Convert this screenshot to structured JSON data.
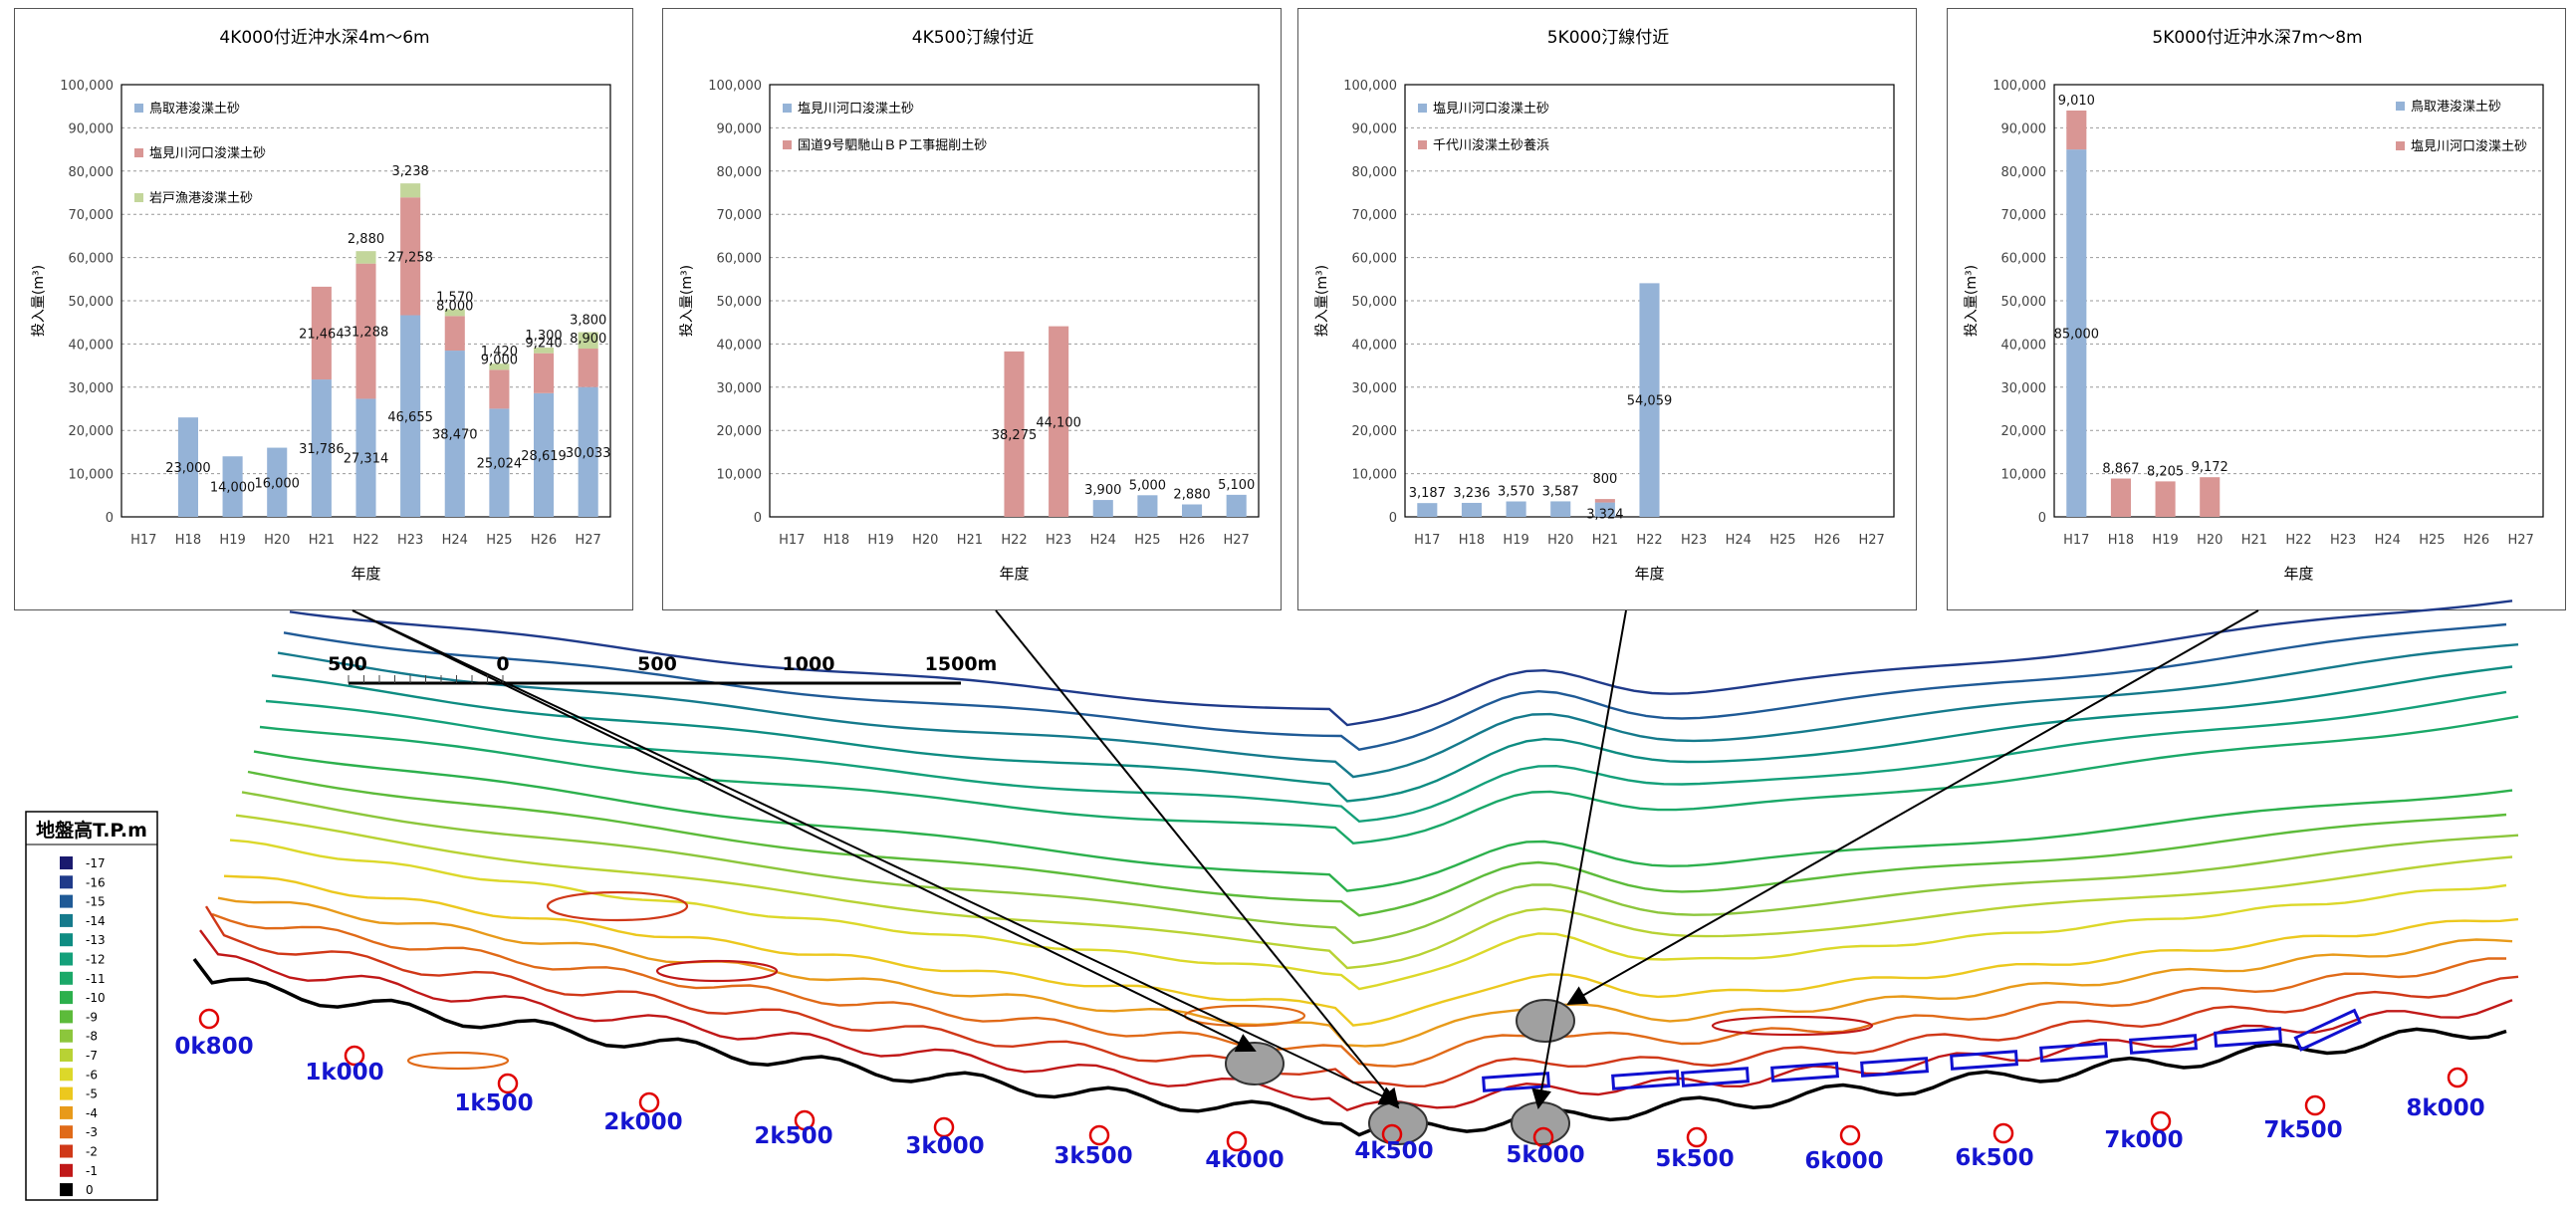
{
  "charts": [
    {
      "title": "4K000付近沖水深4m〜6m",
      "ylabel": "投入量(m³)",
      "xlabel": "年度",
      "categories": [
        "H17",
        "H18",
        "H19",
        "H20",
        "H21",
        "H22",
        "H23",
        "H24",
        "H25",
        "H26",
        "H27"
      ],
      "ylim": [
        0,
        100000
      ],
      "yticks": [
        "0",
        "10,000",
        "20,000",
        "30,000",
        "40,000",
        "50,000",
        "60,000",
        "70,000",
        "80,000",
        "90,000",
        "100,000"
      ],
      "legend_layout": "left",
      "series": [
        {
          "name": "鳥取港浚渫土砂",
          "color": "#95B3D7",
          "values": [
            0,
            23000,
            14000,
            16000,
            31786,
            27314,
            46655,
            38470,
            25024,
            28619,
            30033
          ],
          "labels": [
            "",
            "23,000",
            "14,000",
            "16,000",
            "31,786",
            "27,314",
            "46,655",
            "38,470",
            "25,024",
            "28,619",
            "30,033"
          ]
        },
        {
          "name": "塩見川河口浚渫土砂",
          "color": "#D99694",
          "values": [
            0,
            0,
            0,
            0,
            21464,
            31288,
            27258,
            8000,
            9000,
            9240,
            8900
          ],
          "labels": [
            "",
            "",
            "",
            "",
            "21,464",
            "31,288",
            "27,258",
            "8,000",
            "9,000",
            "9,240",
            "8,900"
          ]
        },
        {
          "name": "岩戸漁港浚渫土砂",
          "color": "#C3D69B",
          "values": [
            0,
            0,
            0,
            0,
            0,
            2880,
            3238,
            1570,
            1420,
            1300,
            3800
          ],
          "labels": [
            "",
            "",
            "",
            "",
            "",
            "2,880",
            "3,238",
            "1,570",
            "1,420",
            "1,300",
            "3,800"
          ]
        }
      ]
    },
    {
      "title": "4K500汀線付近",
      "ylabel": "投入量(m³)",
      "xlabel": "年度",
      "categories": [
        "H17",
        "H18",
        "H19",
        "H20",
        "H21",
        "H22",
        "H23",
        "H24",
        "H25",
        "H26",
        "H27"
      ],
      "ylim": [
        0,
        100000
      ],
      "yticks": [
        "0",
        "10,000",
        "20,000",
        "30,000",
        "40,000",
        "50,000",
        "60,000",
        "70,000",
        "80,000",
        "90,000",
        "100,000"
      ],
      "legend_layout": "left",
      "series": [
        {
          "name": "塩見川河口浚渫土砂",
          "color": "#95B3D7",
          "values": [
            0,
            0,
            0,
            0,
            0,
            0,
            0,
            3900,
            5000,
            2880,
            5100
          ],
          "labels": [
            "",
            "",
            "",
            "",
            "",
            "",
            "",
            "3,900",
            "5,000",
            "2,880",
            "5,100"
          ]
        },
        {
          "name": "国道9号駟馳山ＢＰ工事掘削土砂",
          "color": "#D99694",
          "values": [
            0,
            0,
            0,
            0,
            0,
            38275,
            44100,
            0,
            0,
            0,
            0
          ],
          "labels": [
            "",
            "",
            "",
            "",
            "",
            "38,275",
            "44,100",
            "",
            "",
            "",
            ""
          ]
        }
      ]
    },
    {
      "title": "5K000汀線付近",
      "ylabel": "投入量(m³)",
      "xlabel": "年度",
      "categories": [
        "H17",
        "H18",
        "H19",
        "H20",
        "H21",
        "H22",
        "H23",
        "H24",
        "H25",
        "H26",
        "H27"
      ],
      "ylim": [
        0,
        100000
      ],
      "yticks": [
        "0",
        "10,000",
        "20,000",
        "30,000",
        "40,000",
        "50,000",
        "60,000",
        "70,000",
        "80,000",
        "90,000",
        "100,000"
      ],
      "legend_layout": "left",
      "series": [
        {
          "name": "塩見川河口浚渫土砂",
          "color": "#95B3D7",
          "values": [
            3187,
            3236,
            3570,
            3587,
            3324,
            54059,
            0,
            0,
            0,
            0,
            0
          ],
          "labels": [
            "3,187",
            "3,236",
            "3,570",
            "3,587",
            "3,324",
            "54,059",
            "",
            "",
            "",
            "",
            ""
          ]
        },
        {
          "name": "千代川浚渫土砂養浜",
          "color": "#D99694",
          "values": [
            0,
            0,
            0,
            0,
            800,
            0,
            0,
            0,
            0,
            0,
            0
          ],
          "labels": [
            "",
            "",
            "",
            "",
            "800",
            "",
            "",
            "",
            "",
            "",
            ""
          ]
        }
      ]
    },
    {
      "title": "5K000付近沖水深7m〜8m",
      "ylabel": "投入量(m³)",
      "xlabel": "年度",
      "categories": [
        "H17",
        "H18",
        "H19",
        "H20",
        "H21",
        "H22",
        "H23",
        "H24",
        "H25",
        "H26",
        "H27"
      ],
      "ylim": [
        0,
        100000
      ],
      "yticks": [
        "0",
        "10,000",
        "20,000",
        "30,000",
        "40,000",
        "50,000",
        "60,000",
        "70,000",
        "80,000",
        "90,000",
        "100,000"
      ],
      "legend_layout": "right",
      "series": [
        {
          "name": "鳥取港浚渫土砂",
          "color": "#95B3D7",
          "values": [
            85000,
            0,
            0,
            0,
            0,
            0,
            0,
            0,
            0,
            0,
            0
          ],
          "labels": [
            "85,000",
            "",
            "",
            "",
            "",
            "",
            "",
            "",
            "",
            "",
            ""
          ]
        },
        {
          "name": "塩見川河口浚渫土砂",
          "color": "#D99694",
          "values": [
            9010,
            8867,
            8205,
            9172,
            0,
            0,
            0,
            0,
            0,
            0,
            0
          ],
          "labels": [
            "9,010",
            "8,867",
            "8,205",
            "9,172",
            "",
            "",
            "",
            "",
            "",
            "",
            ""
          ]
        }
      ]
    }
  ],
  "map": {
    "scale_labels": [
      "500",
      "0",
      "500",
      "1000",
      "1500m"
    ],
    "legend_title": "地盤高T.P.m",
    "legend_levels": [
      {
        "label": "-17",
        "color": "#1a1a6e"
      },
      {
        "label": "-16",
        "color": "#1f3a8a"
      },
      {
        "label": "-15",
        "color": "#1f5a96"
      },
      {
        "label": "-14",
        "color": "#157a8c"
      },
      {
        "label": "-13",
        "color": "#0e8c82"
      },
      {
        "label": "-12",
        "color": "#14a07a"
      },
      {
        "label": "-11",
        "color": "#1aa868"
      },
      {
        "label": "-10",
        "color": "#2cb04c"
      },
      {
        "label": "-9",
        "color": "#5cbb3a"
      },
      {
        "label": "-8",
        "color": "#8cc63c"
      },
      {
        "label": "-7",
        "color": "#b8d234"
      },
      {
        "label": "-6",
        "color": "#dcd82a"
      },
      {
        "label": "-5",
        "color": "#ecc81e"
      },
      {
        "label": "-4",
        "color": "#e89a1a"
      },
      {
        "label": "-3",
        "color": "#e06a18"
      },
      {
        "label": "-2",
        "color": "#d03818"
      },
      {
        "label": "-1",
        "color": "#c01818"
      },
      {
        "label": "0",
        "color": "#000000"
      }
    ],
    "stations": [
      "0k800",
      "1k000",
      "1k500",
      "2k000",
      "2k500",
      "3k000",
      "3k500",
      "4k000",
      "4k500",
      "5k000",
      "5k500",
      "6k000",
      "6k500",
      "7k000",
      "7k500",
      "8k000"
    ]
  }
}
